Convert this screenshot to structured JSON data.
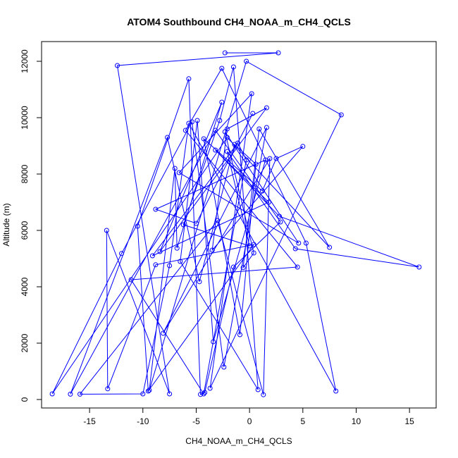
{
  "chart_data": {
    "type": "line",
    "title": "ATOM4 Southbound CH4_NOAA_m_CH4_QCLS",
    "xlabel": "CH4_NOAA_m_CH4_QCLS",
    "ylabel": "Altitude (m)",
    "xlim": [
      -19.5,
      17.5
    ],
    "ylim": [
      -300,
      12700
    ],
    "x_ticks": [
      -15,
      -10,
      -5,
      0,
      5,
      10,
      15
    ],
    "y_ticks": [
      0,
      2000,
      4000,
      6000,
      8000,
      10000,
      12000
    ],
    "grid": false,
    "legend": "none",
    "series_color": "#0000ff",
    "series": [
      {
        "markers": "open-circle",
        "x": [
          -2.3,
          2.7,
          -12.4,
          -7.5,
          -13.4,
          -13.3,
          -8.8,
          0.4,
          -9.5,
          -10.5,
          -5.7,
          -4.6,
          -4.2,
          -1.5,
          2.9,
          -3.2,
          -16.8,
          -7.7,
          -4.7,
          -1.4,
          0.6,
          -0.9,
          -4.3,
          1.2,
          2.5,
          5.0,
          -3.5,
          -2.1,
          1.6,
          -8.4,
          -2.6,
          -6.8,
          -7.0,
          -9.4,
          -0.3,
          8.6,
          -3.7,
          0.2,
          -6.6,
          4.6,
          -2.3,
          0.4,
          -0.6,
          0.9,
          7.5,
          -2.1,
          -18.5,
          -12.0,
          -5.4,
          -2.4,
          1.6,
          -8.1,
          1.9,
          1.3,
          -3.0,
          -15.9,
          -10.0,
          -7.5,
          -5.7,
          8.1,
          5.3,
          -2.6,
          -6.0,
          4.5,
          -11.1,
          -4.3,
          -0.3,
          -1.1,
          -9.1,
          1.8,
          -3.2,
          2.8,
          15.9,
          4.3,
          -2.1,
          0.0,
          -6.2,
          -2.8,
          -1.5,
          0.8,
          -6.5,
          -4.9,
          -3.4,
          1.5,
          -8.8,
          -5.0,
          0.3
        ],
        "y": [
          12300,
          12300,
          11850,
          200,
          6000,
          380,
          4780,
          5500,
          300,
          6150,
          11380,
          180,
          250,
          4700,
          6300,
          9550,
          190,
          9300,
          4180,
          9050,
          8350,
          2300,
          9250,
          7400,
          8550,
          8980,
          5300,
          9600,
          10350,
          5250,
          10550,
          5370,
          8200,
          330,
          12000,
          10100,
          400,
          10850,
          8050,
          5550,
          9500,
          5200,
          4680,
          9600,
          5400,
          9300,
          200,
          5180,
          9850,
          1150,
          9650,
          2350,
          8550,
          170,
          6350,
          190,
          200,
          4750,
          9800,
          300,
          5550,
          11750,
          9550,
          4700,
          4250,
          200,
          8500,
          9100,
          5100,
          7000,
          8850,
          6500,
          4700,
          5350,
          8800,
          5450,
          6200,
          9900,
          11800,
          350,
          4900,
          9900,
          2050,
          8500,
          6750,
          6250,
          10150
        ]
      }
    ]
  }
}
